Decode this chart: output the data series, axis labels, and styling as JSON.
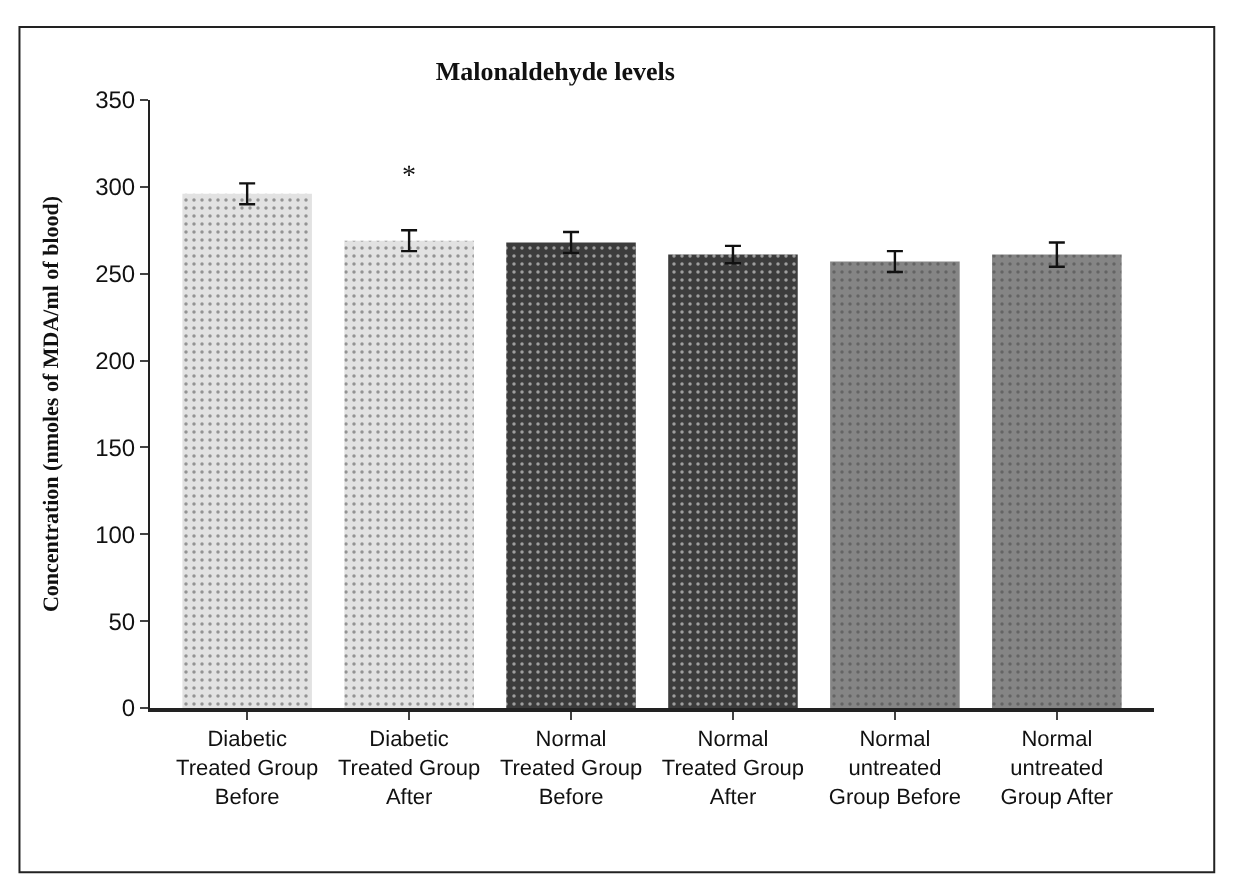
{
  "chart_data": {
    "type": "bar",
    "title": "Malonaldehyde levels",
    "ylabel": "Concentration (nmoles of MDA/ml of blood)",
    "categories": [
      "Diabetic\nTreated Group\nBefore",
      "Diabetic\nTreated Group\nAfter",
      "Normal\nTreated Group\nBefore",
      "Normal\nTreated Group\nAfter",
      "Normal\nuntreated\nGroup Before",
      "Normal\nuntreated\nGroup After"
    ],
    "values": [
      296,
      269,
      268,
      261,
      257,
      261
    ],
    "errors": [
      6,
      6,
      6,
      5,
      6,
      7
    ],
    "colors": [
      "#e2e2e2",
      "#e2e2e2",
      "#3c3c3c",
      "#3c3c3c",
      "#858585",
      "#858585"
    ],
    "ylim": [
      0,
      350
    ],
    "yticks": [
      0,
      50,
      100,
      150,
      200,
      250,
      300,
      350
    ],
    "annotations": [
      {
        "text": "*",
        "x": "Diabetic\nTreated Group\nAfter",
        "y": 269
      }
    ]
  }
}
